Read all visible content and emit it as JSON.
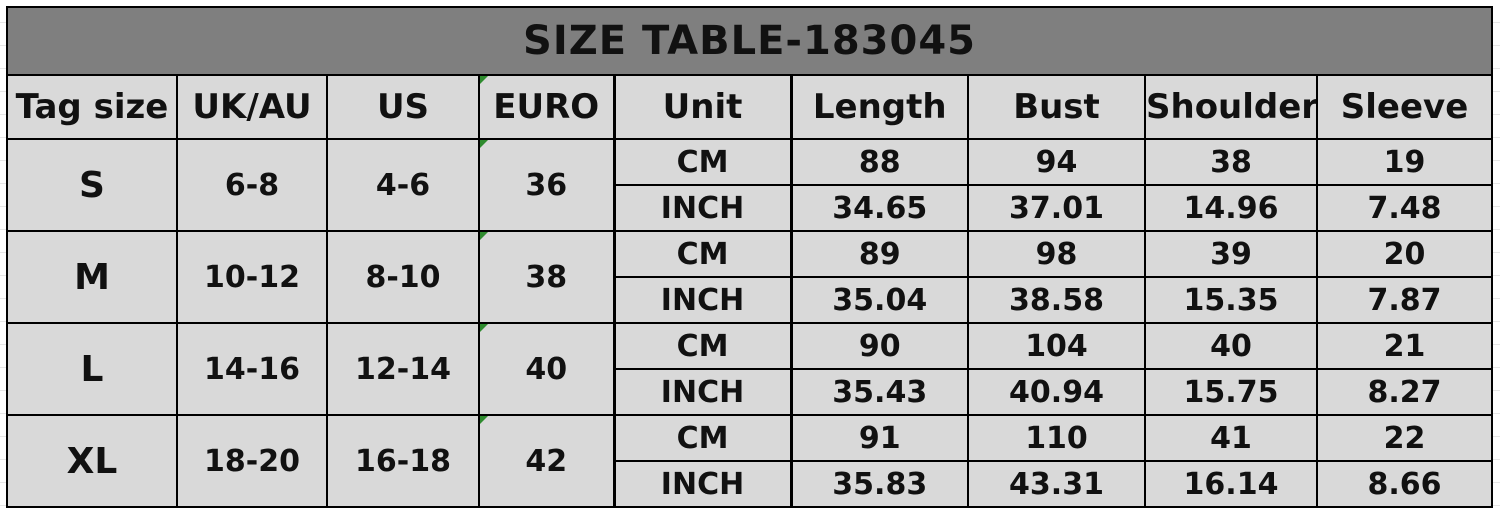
{
  "title": "SIZE TABLE-183045",
  "headers": [
    "Tag size",
    "UK/AU",
    "US",
    "EURO",
    "Unit",
    "Length",
    "Bust",
    "Shoulder",
    "Sleeve"
  ],
  "rows": [
    {
      "tag": "S",
      "uk_au": "6-8",
      "us": "4-6",
      "euro": "36",
      "cm": {
        "unit": "CM",
        "length": "88",
        "bust": "94",
        "shoulder": "38",
        "sleeve": "19"
      },
      "inch": {
        "unit": "INCH",
        "length": "34.65",
        "bust": "37.01",
        "shoulder": "14.96",
        "sleeve": "7.48"
      }
    },
    {
      "tag": "M",
      "uk_au": "10-12",
      "us": "8-10",
      "euro": "38",
      "cm": {
        "unit": "CM",
        "length": "89",
        "bust": "98",
        "shoulder": "39",
        "sleeve": "20"
      },
      "inch": {
        "unit": "INCH",
        "length": "35.04",
        "bust": "38.58",
        "shoulder": "15.35",
        "sleeve": "7.87"
      }
    },
    {
      "tag": "L",
      "uk_au": "14-16",
      "us": "12-14",
      "euro": "40",
      "cm": {
        "unit": "CM",
        "length": "90",
        "bust": "104",
        "shoulder": "40",
        "sleeve": "21"
      },
      "inch": {
        "unit": "INCH",
        "length": "35.43",
        "bust": "40.94",
        "shoulder": "15.75",
        "sleeve": "8.27"
      }
    },
    {
      "tag": "XL",
      "uk_au": "18-20",
      "us": "16-18",
      "euro": "42",
      "cm": {
        "unit": "CM",
        "length": "91",
        "bust": "110",
        "shoulder": "41",
        "sleeve": "22"
      },
      "inch": {
        "unit": "INCH",
        "length": "35.83",
        "bust": "43.31",
        "shoulder": "16.14",
        "sleeve": "8.66"
      }
    }
  ],
  "colors": {
    "title_bg": "#7f7f7f",
    "table_bg": "#d9d9d9",
    "corner_mark": "#2e8b2e"
  }
}
